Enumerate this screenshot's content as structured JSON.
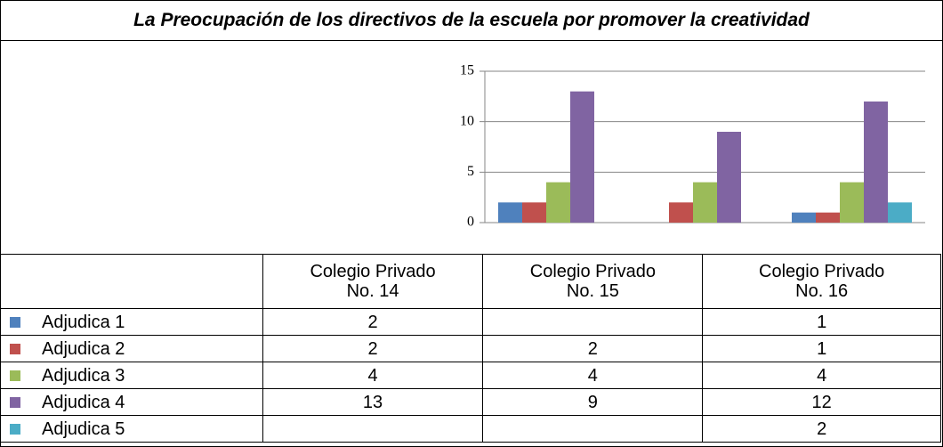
{
  "chart_data": {
    "type": "bar",
    "title": "La Preocupación de los directivos de la escuela por promover la creatividad",
    "categories": [
      "Colegio Privado No. 14",
      "Colegio Privado No. 15",
      "Colegio Privado No. 16"
    ],
    "series": [
      {
        "name": "Adjudica 1",
        "color": "#4f81bd",
        "values": [
          2,
          null,
          1
        ]
      },
      {
        "name": "Adjudica 2",
        "color": "#c0504d",
        "values": [
          2,
          2,
          1
        ]
      },
      {
        "name": "Adjudica 3",
        "color": "#9bbb59",
        "values": [
          4,
          4,
          4
        ]
      },
      {
        "name": "Adjudica 4",
        "color": "#8064a2",
        "values": [
          13,
          9,
          12
        ]
      },
      {
        "name": "Adjudica 5",
        "color": "#4bacc6",
        "values": [
          null,
          null,
          2
        ]
      }
    ],
    "ylim": [
      0,
      15
    ],
    "yticks": [
      0,
      5,
      10,
      15
    ],
    "grid": true
  }
}
